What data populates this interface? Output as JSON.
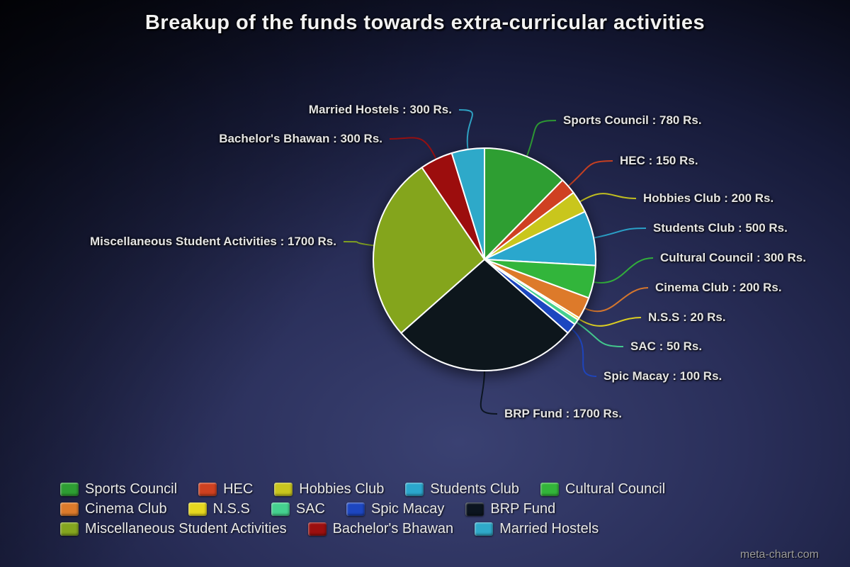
{
  "watermark": "meta-chart.com",
  "chart_data": {
    "type": "pie",
    "title": "Breakup of the funds towards extra-curricular activities",
    "unit": "Rs.",
    "total": 6300,
    "legend_position": "bottom",
    "start_angle_deg": 0,
    "direction": "clockwise",
    "series": [
      {
        "name": "Sports Council",
        "value": 780,
        "color": "#2e9e33",
        "label": "Sports Council : 780 Rs."
      },
      {
        "name": "HEC",
        "value": 150,
        "color": "#cf4120",
        "label": "HEC : 150 Rs."
      },
      {
        "name": "Hobbies Club",
        "value": 200,
        "color": "#c9c61e",
        "label": "Hobbies Club : 200 Rs."
      },
      {
        "name": "Students Club",
        "value": 500,
        "color": "#2ba7cd",
        "label": "Students Club : 500 Rs."
      },
      {
        "name": "Cultural Council",
        "value": 300,
        "color": "#33b53a",
        "label": "Cultural Council : 300 Rs."
      },
      {
        "name": "Cinema Club",
        "value": 200,
        "color": "#dd7a2b",
        "label": "Cinema Club : 200 Rs."
      },
      {
        "name": "N.S.S",
        "value": 20,
        "color": "#e6d71f",
        "label": "N.S.S : 20 Rs."
      },
      {
        "name": "SAC",
        "value": 50,
        "color": "#45d08f",
        "label": "SAC : 50 Rs."
      },
      {
        "name": "Spic Macay",
        "value": 100,
        "color": "#1d46c0",
        "label": "Spic Macay : 100 Rs."
      },
      {
        "name": "BRP Fund",
        "value": 1700,
        "color": "#0b141f",
        "label": "BRP Fund : 1700 Rs."
      },
      {
        "name": "Miscellaneous Student Activities",
        "value": 1700,
        "color": "#84a51f",
        "label": "Miscellaneous Student Activities : 1700 Rs."
      },
      {
        "name": "Bachelor's Bhawan",
        "value": 300,
        "color": "#9c0f0f",
        "label": "Bachelor's Bhawan : 300 Rs."
      },
      {
        "name": "Married Hostels",
        "value": 300,
        "color": "#2fa9c9",
        "label": "Married Hostels : 300 Rs."
      }
    ]
  }
}
